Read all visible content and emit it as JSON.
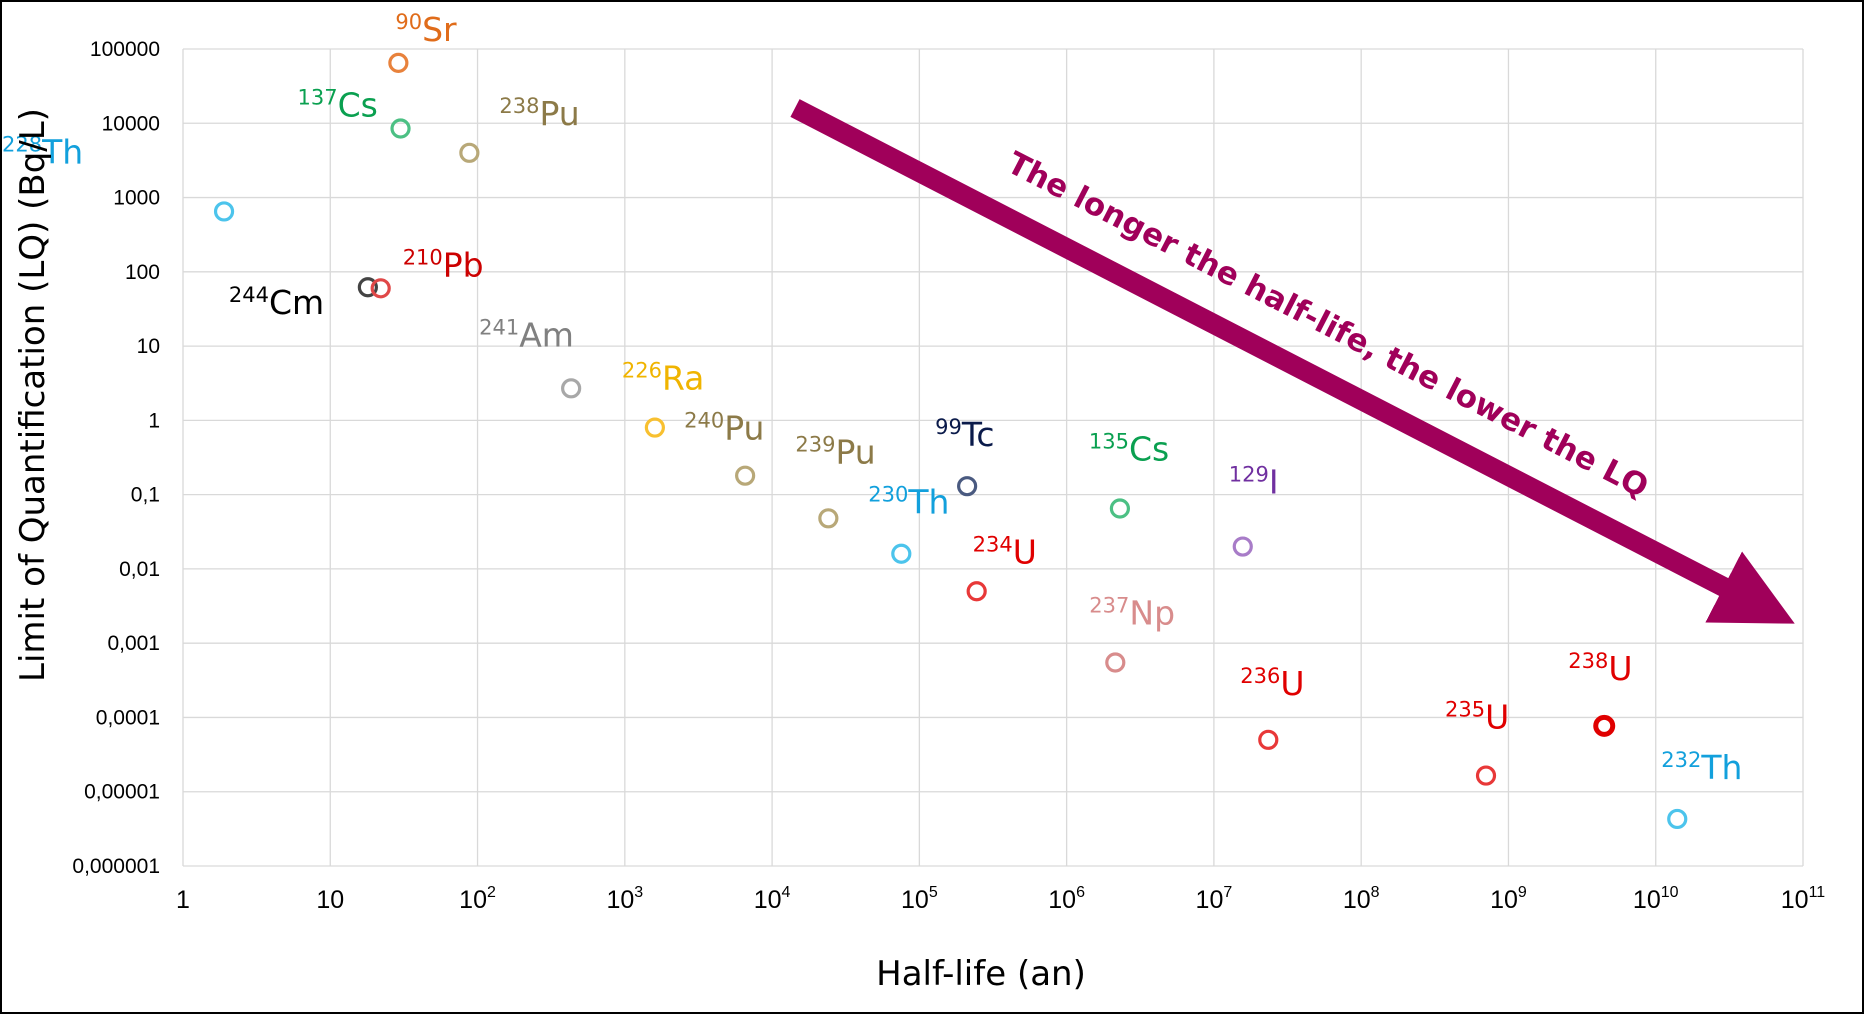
{
  "chart_data": {
    "type": "scatter",
    "title": "",
    "xlabel": "Half-life (an)",
    "ylabel": "Limit of Quantification (LQ) (Bq/L)",
    "x_scale": "log",
    "y_scale": "log",
    "xlim": [
      1,
      100000000000
    ],
    "ylim": [
      1e-06,
      100000
    ],
    "grid": true,
    "x_ticks": [
      {
        "base": "1",
        "exp": ""
      },
      {
        "base": "10",
        "exp": ""
      },
      {
        "base": "10",
        "exp": "2"
      },
      {
        "base": "10",
        "exp": "3"
      },
      {
        "base": "10",
        "exp": "4"
      },
      {
        "base": "10",
        "exp": "5"
      },
      {
        "base": "10",
        "exp": "6"
      },
      {
        "base": "10",
        "exp": "7"
      },
      {
        "base": "10",
        "exp": "8"
      },
      {
        "base": "10",
        "exp": "9"
      },
      {
        "base": "10",
        "exp": "10"
      },
      {
        "base": "10",
        "exp": "11"
      }
    ],
    "y_ticks": [
      "0,000001",
      "0,00001",
      "0,0001",
      "0,001",
      "0,01",
      "0,1",
      "1",
      "10",
      "100",
      "1000",
      "10000",
      "100000"
    ],
    "annotation": {
      "text": "The longer the half-life, the lower the LQ",
      "color": "#a0005a"
    },
    "points": [
      {
        "mass": "90",
        "element": "Sr",
        "x": 29,
        "y": 65000,
        "color": "#e8823c",
        "label_color": "#e06c1a"
      },
      {
        "mass": "137",
        "element": "Cs",
        "x": 30,
        "y": 8500,
        "color": "#4cc084",
        "label_color": "#0aa050"
      },
      {
        "mass": "238",
        "element": "Pu",
        "x": 88,
        "y": 4000,
        "color": "#b8a878",
        "label_color": "#8c7a48"
      },
      {
        "mass": "228",
        "element": "Th",
        "x": 1.9,
        "y": 650,
        "color": "#4cc4ec",
        "label_color": "#12a0dc"
      },
      {
        "mass": "244",
        "element": "Cm",
        "x": 18,
        "y": 62,
        "color": "#444444",
        "label_color": "#000000"
      },
      {
        "mass": "210",
        "element": "Pb",
        "x": 22,
        "y": 60,
        "color": "#e04848",
        "label_color": "#cc0000"
      },
      {
        "mass": "241",
        "element": "Am",
        "x": 432,
        "y": 2.7,
        "color": "#a8a8a8",
        "label_color": "#808080"
      },
      {
        "mass": "226",
        "element": "Ra",
        "x": 1600,
        "y": 0.8,
        "color": "#f8c030",
        "label_color": "#f0b400"
      },
      {
        "mass": "240",
        "element": "Pu",
        "x": 6560,
        "y": 0.18,
        "color": "#b8a878",
        "label_color": "#8c7a48"
      },
      {
        "mass": "239",
        "element": "Pu",
        "x": 24100,
        "y": 0.048,
        "color": "#b8a878",
        "label_color": "#8c7a48"
      },
      {
        "mass": "230",
        "element": "Th",
        "x": 75400,
        "y": 0.016,
        "color": "#4cc4ec",
        "label_color": "#12a0dc"
      },
      {
        "mass": "99",
        "element": "Tc",
        "x": 211000,
        "y": 0.13,
        "color": "#4a5a80",
        "label_color": "#0a1a4a"
      },
      {
        "mass": "234",
        "element": "U",
        "x": 245000,
        "y": 0.005,
        "color": "#e83838",
        "label_color": "#e00000"
      },
      {
        "mass": "135",
        "element": "Cs",
        "x": 2300000,
        "y": 0.065,
        "color": "#4cc084",
        "label_color": "#0aa050"
      },
      {
        "mass": "237",
        "element": "Np",
        "x": 2140000,
        "y": 0.00055,
        "color": "#d88c8c",
        "label_color": "#d88c8c"
      },
      {
        "mass": "129",
        "element": "I",
        "x": 15700000,
        "y": 0.02,
        "color": "#a87cc8",
        "label_color": "#7030a0"
      },
      {
        "mass": "236",
        "element": "U",
        "x": 23400000,
        "y": 5e-05,
        "color": "#e83838",
        "label_color": "#e00000"
      },
      {
        "mass": "235",
        "element": "U",
        "x": 704000000,
        "y": 1.65e-05,
        "color": "#e83838",
        "label_color": "#e00000"
      },
      {
        "mass": "238",
        "element": "U",
        "x": 4470000000,
        "y": 7.7e-05,
        "color": "#e00000",
        "label_color": "#e00000"
      },
      {
        "mass": "232",
        "element": "Th",
        "x": 14000000000,
        "y": 4.3e-06,
        "color": "#4cc4ec",
        "label_color": "#12a0dc"
      }
    ]
  }
}
